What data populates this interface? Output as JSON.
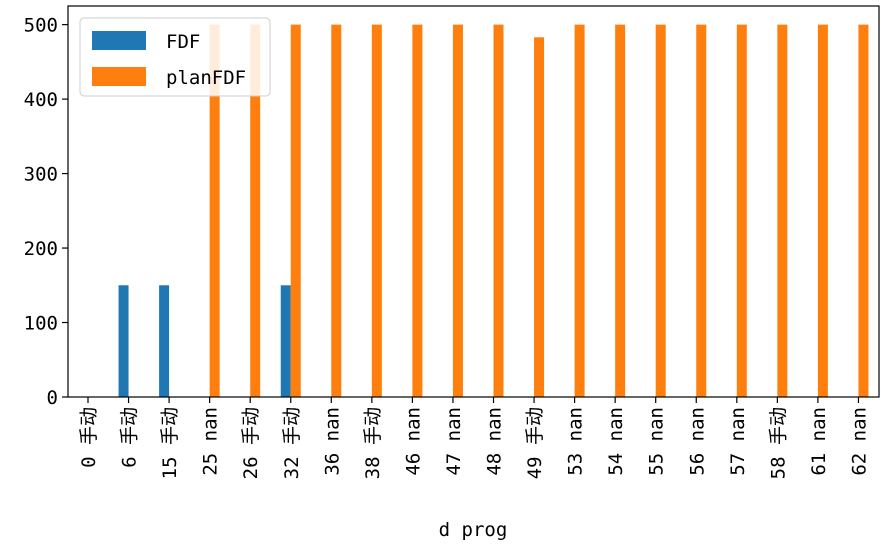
{
  "chart_data": {
    "type": "bar",
    "xlabel": "d prog",
    "ylabel": "",
    "ylim": [
      0,
      525
    ],
    "yticks": [
      0,
      100,
      200,
      300,
      400,
      500
    ],
    "categories": [
      "0 手动",
      "6 手动",
      "15 手动",
      "25 nan",
      "26 手动",
      "32 手动",
      "36 nan",
      "38 手动",
      "46 nan",
      "47 nan",
      "48 nan",
      "49 手动",
      "53 nan",
      "54 nan",
      "55 nan",
      "56 nan",
      "57 nan",
      "58 手动",
      "61 nan",
      "62 nan"
    ],
    "series": [
      {
        "name": "FDF",
        "color": "#1f77b4",
        "values": [
          0,
          150,
          150,
          0,
          0,
          150,
          0,
          0,
          0,
          0,
          0,
          0,
          0,
          0,
          0,
          0,
          0,
          0,
          0,
          0
        ]
      },
      {
        "name": "planFDF",
        "color": "#ff7f0e",
        "values": [
          0,
          0,
          0,
          500,
          500,
          500,
          500,
          500,
          500,
          500,
          500,
          483,
          500,
          500,
          500,
          500,
          500,
          500,
          500,
          500
        ]
      }
    ],
    "legend_position": "top-left",
    "grid": false
  }
}
